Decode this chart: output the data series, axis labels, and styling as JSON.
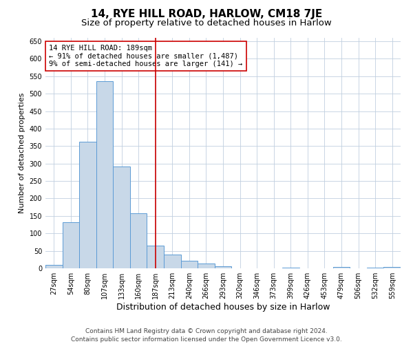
{
  "title": "14, RYE HILL ROAD, HARLOW, CM18 7JE",
  "subtitle": "Size of property relative to detached houses in Harlow",
  "xlabel": "Distribution of detached houses by size in Harlow",
  "ylabel": "Number of detached properties",
  "bar_labels": [
    "27sqm",
    "54sqm",
    "80sqm",
    "107sqm",
    "133sqm",
    "160sqm",
    "187sqm",
    "213sqm",
    "240sqm",
    "266sqm",
    "293sqm",
    "320sqm",
    "346sqm",
    "373sqm",
    "399sqm",
    "426sqm",
    "453sqm",
    "479sqm",
    "506sqm",
    "532sqm",
    "559sqm"
  ],
  "bar_values": [
    10,
    132,
    362,
    535,
    292,
    158,
    65,
    40,
    22,
    14,
    5,
    0,
    0,
    0,
    2,
    0,
    0,
    3,
    0,
    2,
    3
  ],
  "bar_color": "#c8d8e8",
  "bar_edge_color": "#5b9bd5",
  "vline_x_idx": 6,
  "vline_color": "#cc0000",
  "annotation_line1": "14 RYE HILL ROAD: 189sqm",
  "annotation_line2": "← 91% of detached houses are smaller (1,487)",
  "annotation_line3": "9% of semi-detached houses are larger (141) →",
  "annotation_box_color": "white",
  "annotation_box_edge_color": "#cc0000",
  "ylim": [
    0,
    660
  ],
  "yticks": [
    0,
    50,
    100,
    150,
    200,
    250,
    300,
    350,
    400,
    450,
    500,
    550,
    600,
    650
  ],
  "grid_color": "#c0cfdf",
  "footer": "Contains HM Land Registry data © Crown copyright and database right 2024.\nContains public sector information licensed under the Open Government Licence v3.0.",
  "title_fontsize": 11,
  "subtitle_fontsize": 9.5,
  "xlabel_fontsize": 9,
  "ylabel_fontsize": 8,
  "footer_fontsize": 6.5,
  "annotation_fontsize": 7.5,
  "tick_fontsize": 7
}
